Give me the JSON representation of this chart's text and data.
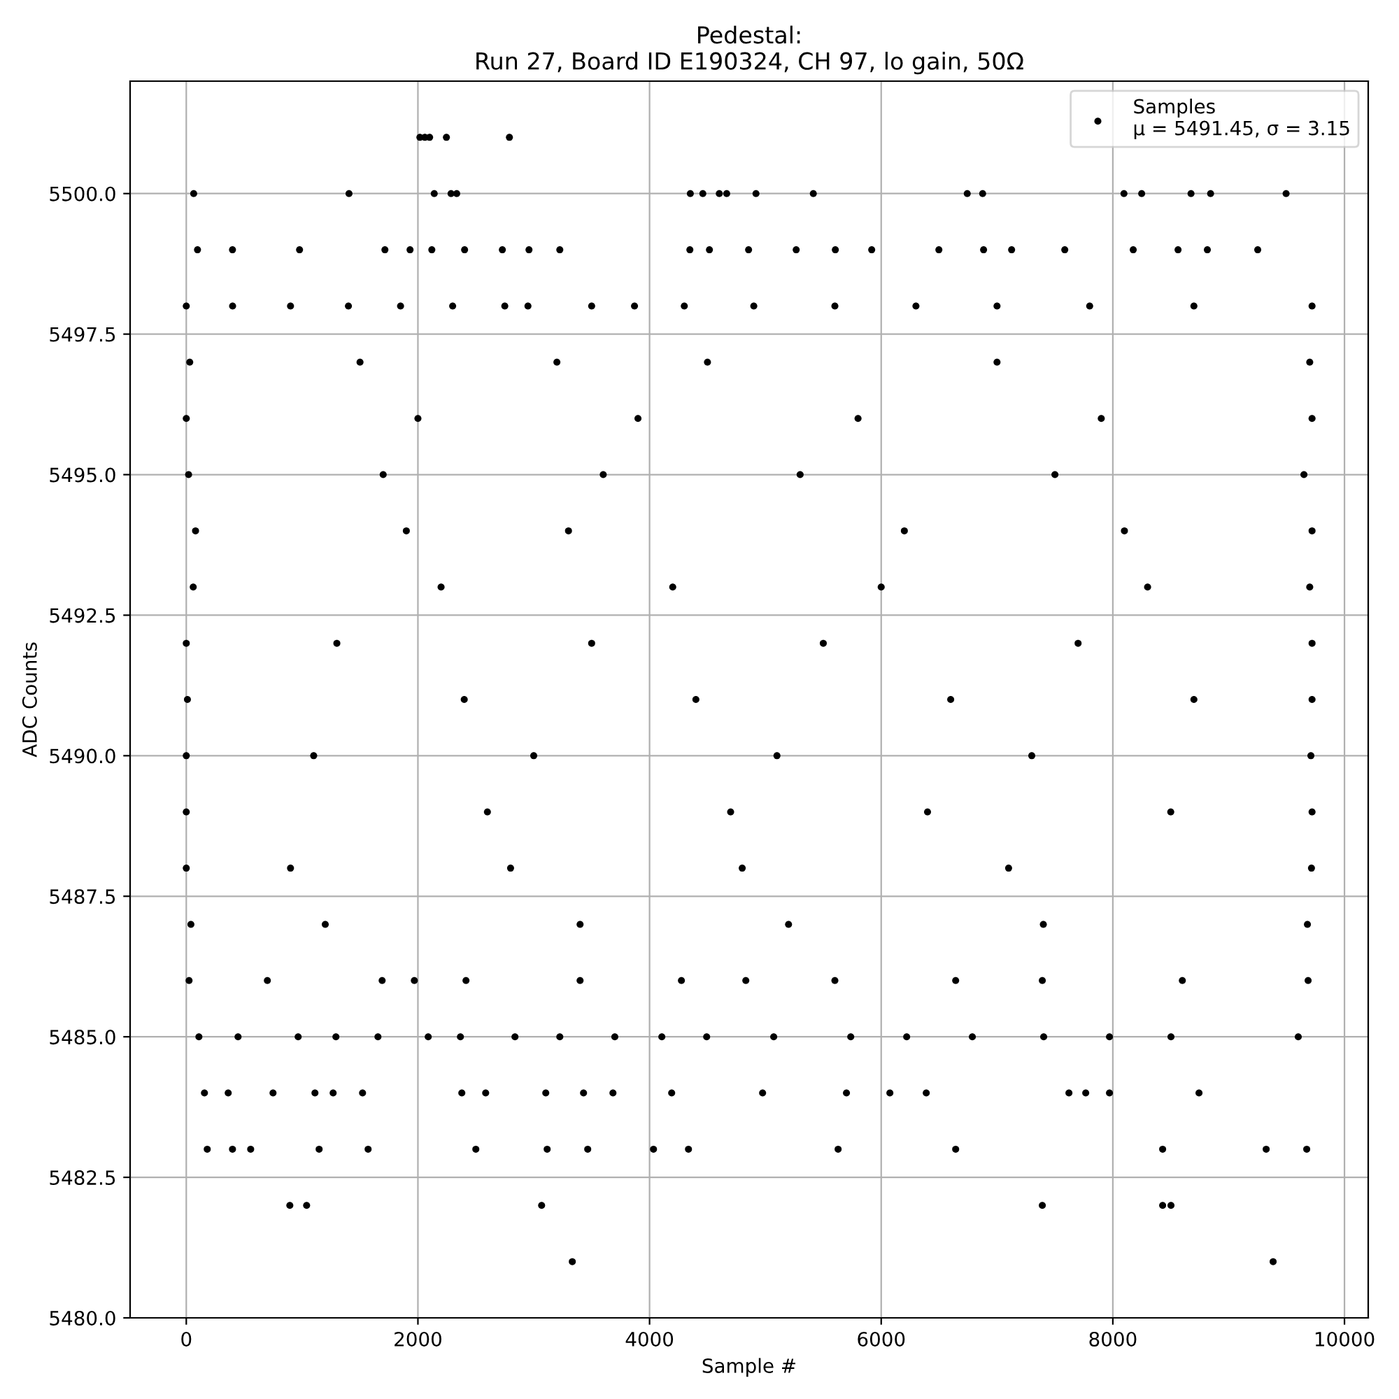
{
  "chart_data": {
    "type": "scatter",
    "title": "Pedestal:\nRun 27, Board ID E190324, CH 97, lo gain, 50Ω",
    "xlabel": "Sample #",
    "ylabel": "ADC Counts",
    "x": [
      2017,
      2060,
      2101,
      2246,
      2790,
      64,
      1405,
      2141,
      2286,
      2335,
      4352,
      4460,
      4602,
      4666,
      4919,
      5414,
      6743,
      6876,
      8096,
      8249,
      8675,
      8844,
      9496,
      97,
      399,
      978,
      1715,
      1932,
      2120,
      2403,
      2729,
      2959,
      3225,
      4348,
      4517,
      4855,
      5266,
      5604,
      5918,
      6498,
      6884,
      7126,
      7585,
      8176,
      8563,
      8816,
      9251,
      0,
      400,
      900,
      1400,
      1850,
      2300,
      2750,
      2950,
      3500,
      3870,
      4300,
      4900,
      5600,
      6300,
      7000,
      7800,
      8700,
      9720,
      30,
      1500,
      3200,
      4500,
      7000,
      9700,
      0,
      2000,
      3900,
      5800,
      7900,
      9720,
      20,
      1700,
      3600,
      5300,
      7500,
      9650,
      80,
      1900,
      3300,
      6200,
      8100,
      9720,
      60,
      2200,
      4200,
      6000,
      8300,
      9700,
      0,
      1300,
      3500,
      5500,
      7700,
      9720,
      10,
      2400,
      4400,
      6600,
      8700,
      9720,
      0,
      1100,
      3000,
      5100,
      7300,
      9710,
      0,
      2600,
      4700,
      6400,
      8500,
      9720,
      0,
      900,
      2800,
      4800,
      7100,
      9715,
      40,
      1200,
      3400,
      5200,
      7400,
      9680,
      24,
      700,
      1691,
      1969,
      2415,
      3400,
      4275,
      4831,
      5600,
      6643,
      7391,
      8600,
      9686,
      109,
      447,
      966,
      1292,
      1655,
      2089,
      2367,
      2838,
      3225,
      3700,
      4106,
      4493,
      5072,
      5737,
      6220,
      6787,
      7403,
      7971,
      8502,
      9601,
      157,
      362,
      749,
      1111,
      1268,
      1522,
      2379,
      2585,
      3104,
      3430,
      3684,
      4191,
      4976,
      5700,
      6075,
      6389,
      7621,
      7766,
      7971,
      8744,
      181,
      399,
      556,
      1147,
      1570,
      2500,
      3116,
      3466,
      4034,
      4336,
      5628,
      6643,
      8430,
      9324,
      9674,
      894,
      1039,
      3068,
      7391,
      8430,
      8502,
      3333,
      9384
    ],
    "series": [
      {
        "name": "Samples\nμ = 5491.45, σ = 3.15",
        "color": "#000000",
        "values": [
          5501,
          5501,
          5501,
          5501,
          5501,
          5500,
          5500,
          5500,
          5500,
          5500,
          5500,
          5500,
          5500,
          5500,
          5500,
          5500,
          5500,
          5500,
          5500,
          5500,
          5500,
          5500,
          5500,
          5499,
          5499,
          5499,
          5499,
          5499,
          5499,
          5499,
          5499,
          5499,
          5499,
          5499,
          5499,
          5499,
          5499,
          5499,
          5499,
          5499,
          5499,
          5499,
          5499,
          5499,
          5499,
          5499,
          5499,
          5498,
          5498,
          5498,
          5498,
          5498,
          5498,
          5498,
          5498,
          5498,
          5498,
          5498,
          5498,
          5498,
          5498,
          5498,
          5498,
          5498,
          5498,
          5497,
          5497,
          5497,
          5497,
          5497,
          5497,
          5496,
          5496,
          5496,
          5496,
          5496,
          5496,
          5495,
          5495,
          5495,
          5495,
          5495,
          5495,
          5494,
          5494,
          5494,
          5494,
          5494,
          5494,
          5493,
          5493,
          5493,
          5493,
          5493,
          5493,
          5492,
          5492,
          5492,
          5492,
          5492,
          5492,
          5491,
          5491,
          5491,
          5491,
          5491,
          5491,
          5490,
          5490,
          5490,
          5490,
          5490,
          5490,
          5489,
          5489,
          5489,
          5489,
          5489,
          5489,
          5488,
          5488,
          5488,
          5488,
          5488,
          5488,
          5487,
          5487,
          5487,
          5487,
          5487,
          5487,
          5486,
          5486,
          5486,
          5486,
          5486,
          5486,
          5486,
          5486,
          5486,
          5486,
          5486,
          5486,
          5486,
          5485,
          5485,
          5485,
          5485,
          5485,
          5485,
          5485,
          5485,
          5485,
          5485,
          5485,
          5485,
          5485,
          5485,
          5485,
          5485,
          5485,
          5485,
          5485,
          5485,
          5484,
          5484,
          5484,
          5484,
          5484,
          5484,
          5484,
          5484,
          5484,
          5484,
          5484,
          5484,
          5484,
          5484,
          5484,
          5484,
          5484,
          5484,
          5484,
          5484,
          5483,
          5483,
          5483,
          5483,
          5483,
          5483,
          5483,
          5483,
          5483,
          5483,
          5483,
          5483,
          5483,
          5483,
          5483,
          5482,
          5482,
          5482,
          5482,
          5482,
          5482,
          5481,
          5481
        ]
      }
    ],
    "xlim": [
      -485,
      10205
    ],
    "xticks": [
      0,
      2000,
      4000,
      6000,
      8000,
      10000
    ],
    "ylim": [
      5480,
      5502
    ],
    "yticks": [
      {
        "value": 5480,
        "label": "5480.0"
      },
      {
        "value": 5482.5,
        "label": "5482.5"
      },
      {
        "value": 5485,
        "label": "5485.0"
      },
      {
        "value": 5487.5,
        "label": "5487.5"
      },
      {
        "value": 5490,
        "label": "5490.0"
      },
      {
        "value": 5492.5,
        "label": "5492.5"
      },
      {
        "value": 5495,
        "label": "5495.0"
      },
      {
        "value": 5497.5,
        "label": "5497.5"
      },
      {
        "value": 5500,
        "label": "5500.0"
      }
    ],
    "grid": true,
    "legend": "top right",
    "marker": "circle"
  }
}
